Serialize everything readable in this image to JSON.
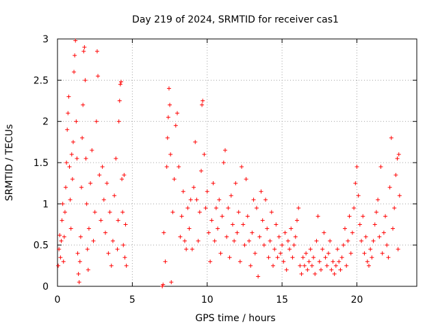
{
  "chart_data": {
    "type": "scatter",
    "title": "Day 219 of 2024, SRMTID for receiver cas1",
    "xlabel": "GPS time / hours",
    "ylabel": "SRMTID / TECUs",
    "xlim": [
      0,
      24
    ],
    "ylim": [
      0,
      3
    ],
    "xticks": [
      0,
      5,
      10,
      15,
      20
    ],
    "xtick_labels": [
      "0",
      "5",
      "10",
      "15",
      "20"
    ],
    "yticks": [
      0,
      0.5,
      1,
      1.5,
      2,
      2.5,
      3
    ],
    "ytick_labels": [
      "0",
      "0.5",
      "1",
      "1.5",
      "2",
      "2.5",
      "3"
    ],
    "grid": true,
    "marker": "plus",
    "color": "#ff0000",
    "series": [
      {
        "name": "cas1 SRMTID",
        "points": [
          [
            0.05,
            0.25
          ],
          [
            0.1,
            0.45
          ],
          [
            0.15,
            0.62
          ],
          [
            0.2,
            0.35
          ],
          [
            0.25,
            0.55
          ],
          [
            0.3,
            0.8
          ],
          [
            0.35,
            1.0
          ],
          [
            0.4,
            0.3
          ],
          [
            0.45,
            0.6
          ],
          [
            0.5,
            0.9
          ],
          [
            0.55,
            1.2
          ],
          [
            0.6,
            1.5
          ],
          [
            0.65,
            1.9
          ],
          [
            0.7,
            2.1
          ],
          [
            0.75,
            2.3
          ],
          [
            0.8,
            1.45
          ],
          [
            0.85,
            1.05
          ],
          [
            0.9,
            0.7
          ],
          [
            0.95,
            1.6
          ],
          [
            1.0,
            1.3
          ],
          [
            1.05,
            1.75
          ],
          [
            1.1,
            2.6
          ],
          [
            1.15,
            2.8
          ],
          [
            1.2,
            2.98
          ],
          [
            1.25,
            2.0
          ],
          [
            1.3,
            1.55
          ],
          [
            1.35,
            0.4
          ],
          [
            1.4,
            0.15
          ],
          [
            1.45,
            0.05
          ],
          [
            1.5,
            0.3
          ],
          [
            1.55,
            0.6
          ],
          [
            1.6,
            1.2
          ],
          [
            1.65,
            1.8
          ],
          [
            1.7,
            2.2
          ],
          [
            1.75,
            2.85
          ],
          [
            1.8,
            2.9
          ],
          [
            1.85,
            2.5
          ],
          [
            1.9,
            1.55
          ],
          [
            1.95,
            1.0
          ],
          [
            2.0,
            0.45
          ],
          [
            2.05,
            0.2
          ],
          [
            2.1,
            0.7
          ],
          [
            2.2,
            1.25
          ],
          [
            2.3,
            1.65
          ],
          [
            2.4,
            0.55
          ],
          [
            2.5,
            0.9
          ],
          [
            2.6,
            2.0
          ],
          [
            2.65,
            2.85
          ],
          [
            2.7,
            2.55
          ],
          [
            2.8,
            1.35
          ],
          [
            2.9,
            0.8
          ],
          [
            3.0,
            1.45
          ],
          [
            3.1,
            1.05
          ],
          [
            3.2,
            0.65
          ],
          [
            3.3,
            1.25
          ],
          [
            3.4,
            0.4
          ],
          [
            3.5,
            0.9
          ],
          [
            3.6,
            0.25
          ],
          [
            3.7,
            0.55
          ],
          [
            3.8,
            1.1
          ],
          [
            3.9,
            1.55
          ],
          [
            4.0,
            0.45
          ],
          [
            4.05,
            0.8
          ],
          [
            4.1,
            2.0
          ],
          [
            4.15,
            2.25
          ],
          [
            4.2,
            2.45
          ],
          [
            4.25,
            2.48
          ],
          [
            4.3,
            1.3
          ],
          [
            4.35,
            0.9
          ],
          [
            4.4,
            0.5
          ],
          [
            4.45,
            1.35
          ],
          [
            4.5,
            0.35
          ],
          [
            4.55,
            0.75
          ],
          [
            4.6,
            0.25
          ],
          [
            7.0,
            0.0
          ],
          [
            7.05,
            0.02
          ],
          [
            7.1,
            0.65
          ],
          [
            7.2,
            0.3
          ],
          [
            7.3,
            1.45
          ],
          [
            7.35,
            1.8
          ],
          [
            7.4,
            2.05
          ],
          [
            7.45,
            2.4
          ],
          [
            7.5,
            2.2
          ],
          [
            7.55,
            1.6
          ],
          [
            7.6,
            0.05
          ],
          [
            7.7,
            0.9
          ],
          [
            7.8,
            1.3
          ],
          [
            7.9,
            1.95
          ],
          [
            8.0,
            2.1
          ],
          [
            8.1,
            1.45
          ],
          [
            8.2,
            0.6
          ],
          [
            8.3,
            0.85
          ],
          [
            8.4,
            1.15
          ],
          [
            8.5,
            0.55
          ],
          [
            8.6,
            0.45
          ],
          [
            8.7,
            0.95
          ],
          [
            8.8,
            0.7
          ],
          [
            8.9,
            1.05
          ],
          [
            9.0,
            0.45
          ],
          [
            9.1,
            1.2
          ],
          [
            9.2,
            1.75
          ],
          [
            9.3,
            1.05
          ],
          [
            9.4,
            0.55
          ],
          [
            9.5,
            0.9
          ],
          [
            9.6,
            1.4
          ],
          [
            9.65,
            2.2
          ],
          [
            9.7,
            2.25
          ],
          [
            9.8,
            1.6
          ],
          [
            9.9,
            0.95
          ],
          [
            10.0,
            1.15
          ],
          [
            10.1,
            0.65
          ],
          [
            10.2,
            0.3
          ],
          [
            10.3,
            0.8
          ],
          [
            10.4,
            1.25
          ],
          [
            10.5,
            0.55
          ],
          [
            10.6,
            0.95
          ],
          [
            10.7,
            0.7
          ],
          [
            10.8,
            1.05
          ],
          [
            10.9,
            0.4
          ],
          [
            11.0,
            0.85
          ],
          [
            11.1,
            1.5
          ],
          [
            11.2,
            1.65
          ],
          [
            11.3,
            0.6
          ],
          [
            11.4,
            0.95
          ],
          [
            11.5,
            0.35
          ],
          [
            11.6,
            1.1
          ],
          [
            11.7,
            0.75
          ],
          [
            11.8,
            0.55
          ],
          [
            11.9,
            1.25
          ],
          [
            12.0,
            0.65
          ],
          [
            12.1,
            0.9
          ],
          [
            12.2,
            0.3
          ],
          [
            12.3,
            1.45
          ],
          [
            12.4,
            0.75
          ],
          [
            12.5,
            0.5
          ],
          [
            12.6,
            1.3
          ],
          [
            12.7,
            0.85
          ],
          [
            12.8,
            0.55
          ],
          [
            12.9,
            0.25
          ],
          [
            13.0,
            0.65
          ],
          [
            13.1,
            1.05
          ],
          [
            13.2,
            0.4
          ],
          [
            13.3,
            0.95
          ],
          [
            13.4,
            0.12
          ],
          [
            13.5,
            0.6
          ],
          [
            13.6,
            1.15
          ],
          [
            13.7,
            0.8
          ],
          [
            13.8,
            0.5
          ],
          [
            13.9,
            1.05
          ],
          [
            14.0,
            0.7
          ],
          [
            14.1,
            0.35
          ],
          [
            14.2,
            0.55
          ],
          [
            14.3,
            0.9
          ],
          [
            14.4,
            0.25
          ],
          [
            14.5,
            0.45
          ],
          [
            14.6,
            0.75
          ],
          [
            14.7,
            0.35
          ],
          [
            14.8,
            0.6
          ],
          [
            14.9,
            0.4
          ],
          [
            15.0,
            0.5
          ],
          [
            15.1,
            0.3
          ],
          [
            15.2,
            0.65
          ],
          [
            15.3,
            0.2
          ],
          [
            15.4,
            0.55
          ],
          [
            15.5,
            0.45
          ],
          [
            15.6,
            0.7
          ],
          [
            15.7,
            0.35
          ],
          [
            15.8,
            0.5
          ],
          [
            15.9,
            0.6
          ],
          [
            16.0,
            0.8
          ],
          [
            16.1,
            0.95
          ],
          [
            16.2,
            0.25
          ],
          [
            16.3,
            0.15
          ],
          [
            16.4,
            0.35
          ],
          [
            16.5,
            0.25
          ],
          [
            16.6,
            0.4
          ],
          [
            16.7,
            0.2
          ],
          [
            16.8,
            0.3
          ],
          [
            16.9,
            0.45
          ],
          [
            17.0,
            0.25
          ],
          [
            17.1,
            0.35
          ],
          [
            17.2,
            0.15
          ],
          [
            17.3,
            0.55
          ],
          [
            17.4,
            0.85
          ],
          [
            17.5,
            0.3
          ],
          [
            17.6,
            0.2
          ],
          [
            17.7,
            0.45
          ],
          [
            17.8,
            0.65
          ],
          [
            17.9,
            0.35
          ],
          [
            18.0,
            0.25
          ],
          [
            18.1,
            0.4
          ],
          [
            18.2,
            0.55
          ],
          [
            18.3,
            0.2
          ],
          [
            18.4,
            0.3
          ],
          [
            18.5,
            0.15
          ],
          [
            18.6,
            0.25
          ],
          [
            18.7,
            0.45
          ],
          [
            18.8,
            0.3
          ],
          [
            18.9,
            0.2
          ],
          [
            19.0,
            0.35
          ],
          [
            19.1,
            0.5
          ],
          [
            19.2,
            0.7
          ],
          [
            19.3,
            0.25
          ],
          [
            19.4,
            0.55
          ],
          [
            19.5,
            0.85
          ],
          [
            19.6,
            0.4
          ],
          [
            19.7,
            0.65
          ],
          [
            19.8,
            0.95
          ],
          [
            19.9,
            1.25
          ],
          [
            20.0,
            1.45
          ],
          [
            20.1,
            1.1
          ],
          [
            20.2,
            0.75
          ],
          [
            20.3,
            0.55
          ],
          [
            20.4,
            0.85
          ],
          [
            20.5,
            0.4
          ],
          [
            20.6,
            0.6
          ],
          [
            20.7,
            0.3
          ],
          [
            20.8,
            0.25
          ],
          [
            20.9,
            0.45
          ],
          [
            21.0,
            0.35
          ],
          [
            21.1,
            0.55
          ],
          [
            21.2,
            0.75
          ],
          [
            21.3,
            0.9
          ],
          [
            21.4,
            1.05
          ],
          [
            21.5,
            0.6
          ],
          [
            21.6,
            1.45
          ],
          [
            21.7,
            0.4
          ],
          [
            21.8,
            0.65
          ],
          [
            21.9,
            0.85
          ],
          [
            22.0,
            0.5
          ],
          [
            22.1,
            0.35
          ],
          [
            22.2,
            1.2
          ],
          [
            22.3,
            1.8
          ],
          [
            22.4,
            0.7
          ],
          [
            22.5,
            0.95
          ],
          [
            22.6,
            1.35
          ],
          [
            22.7,
            1.55
          ],
          [
            22.75,
            0.45
          ],
          [
            22.8,
            1.6
          ],
          [
            22.85,
            1.1
          ]
        ]
      }
    ]
  }
}
